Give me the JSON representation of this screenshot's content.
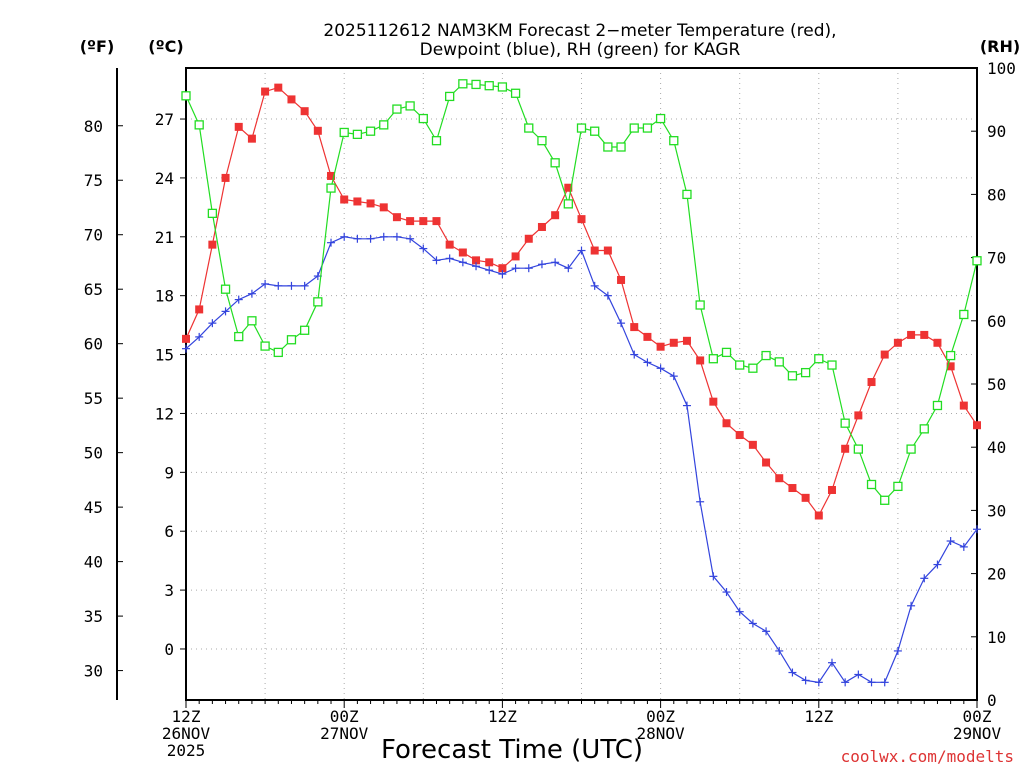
{
  "chart_data": {
    "type": "line",
    "title_line1": "2025112612 NAM3KM Forecast 2−meter Temperature (red),",
    "title_line2": "Dewpoint (blue), RH (green) for KAGR",
    "xlabel": "Forecast Time (UTC)",
    "watermark": "coolwx.com/modelts",
    "unit_label_f": "(ºF)",
    "unit_label_c": "(ºC)",
    "unit_label_rh": "(RH)",
    "x_range_hours": [
      0,
      60
    ],
    "x_ticks": [
      {
        "hour": 0,
        "lines": [
          "12Z",
          "26NOV",
          "2025"
        ]
      },
      {
        "hour": 12,
        "lines": [
          "00Z",
          "27NOV"
        ]
      },
      {
        "hour": 24,
        "lines": [
          "12Z",
          ""
        ]
      },
      {
        "hour": 36,
        "lines": [
          "00Z",
          "28NOV"
        ]
      },
      {
        "hour": 48,
        "lines": [
          "12Z",
          ""
        ]
      },
      {
        "hour": 60,
        "lines": [
          "00Z",
          "29NOV"
        ]
      }
    ],
    "ylim_c": [
      -2.6,
      29.6
    ],
    "ylim_f": [
      27.3,
      85.3
    ],
    "ylim_rh": [
      0,
      100
    ],
    "yticks_c": [
      "27",
      "24",
      "21",
      "18",
      "15",
      "12",
      "9",
      "6",
      "3",
      "0"
    ],
    "yticks_f": [
      "80",
      "75",
      "70",
      "65",
      "60",
      "55",
      "50",
      "45",
      "40",
      "35",
      "30"
    ],
    "yticks_rh": [
      "100",
      "90",
      "80",
      "70",
      "60",
      "50",
      "40",
      "30",
      "20",
      "10",
      "0"
    ],
    "series": [
      {
        "name": "Temperature (°C)",
        "color": "#ee3333",
        "marker": "filled-square",
        "values": [
          [
            0,
            15.8
          ],
          [
            1,
            17.3
          ],
          [
            2,
            20.6
          ],
          [
            3,
            24.0
          ],
          [
            4,
            26.6
          ],
          [
            5,
            26.0
          ],
          [
            6,
            28.4
          ],
          [
            7,
            28.6
          ],
          [
            8,
            28.0
          ],
          [
            9,
            27.4
          ],
          [
            10,
            26.4
          ],
          [
            11,
            24.1
          ],
          [
            12,
            22.9
          ],
          [
            13,
            22.8
          ],
          [
            14,
            22.7
          ],
          [
            15,
            22.5
          ],
          [
            16,
            22.0
          ],
          [
            17,
            21.8
          ],
          [
            18,
            21.8
          ],
          [
            19,
            21.8
          ],
          [
            20,
            20.6
          ],
          [
            21,
            20.2
          ],
          [
            22,
            19.8
          ],
          [
            23,
            19.7
          ],
          [
            24,
            19.4
          ],
          [
            25,
            20.0
          ],
          [
            26,
            20.9
          ],
          [
            27,
            21.5
          ],
          [
            28,
            22.1
          ],
          [
            29,
            23.5
          ],
          [
            30,
            21.9
          ],
          [
            31,
            20.3
          ],
          [
            32,
            20.3
          ],
          [
            33,
            18.8
          ],
          [
            34,
            16.4
          ],
          [
            35,
            15.9
          ],
          [
            36,
            15.4
          ],
          [
            37,
            15.6
          ],
          [
            38,
            15.7
          ],
          [
            39,
            14.7
          ],
          [
            40,
            12.6
          ],
          [
            41,
            11.5
          ],
          [
            42,
            10.9
          ],
          [
            43,
            10.4
          ],
          [
            44,
            9.5
          ],
          [
            45,
            8.7
          ],
          [
            46,
            8.2
          ],
          [
            47,
            7.7
          ],
          [
            48,
            6.8
          ],
          [
            49,
            8.1
          ],
          [
            50,
            10.2
          ],
          [
            51,
            11.9
          ],
          [
            52,
            13.6
          ],
          [
            53,
            15.0
          ],
          [
            54,
            15.6
          ],
          [
            55,
            16.0
          ],
          [
            56,
            16.0
          ],
          [
            57,
            15.6
          ],
          [
            58,
            14.4
          ],
          [
            59,
            12.4
          ],
          [
            60,
            11.4
          ]
        ]
      },
      {
        "name": "Dewpoint (°C)",
        "color": "#3344dd",
        "marker": "plus",
        "values": [
          [
            0,
            15.3
          ],
          [
            1,
            15.9
          ],
          [
            2,
            16.6
          ],
          [
            3,
            17.2
          ],
          [
            4,
            17.8
          ],
          [
            5,
            18.1
          ],
          [
            6,
            18.6
          ],
          [
            7,
            18.5
          ],
          [
            8,
            18.5
          ],
          [
            9,
            18.5
          ],
          [
            10,
            19.0
          ],
          [
            11,
            20.7
          ],
          [
            12,
            21.0
          ],
          [
            13,
            20.9
          ],
          [
            14,
            20.9
          ],
          [
            15,
            21.0
          ],
          [
            16,
            21.0
          ],
          [
            17,
            20.9
          ],
          [
            18,
            20.4
          ],
          [
            19,
            19.8
          ],
          [
            20,
            19.9
          ],
          [
            21,
            19.7
          ],
          [
            22,
            19.5
          ],
          [
            23,
            19.3
          ],
          [
            24,
            19.1
          ],
          [
            25,
            19.4
          ],
          [
            26,
            19.4
          ],
          [
            27,
            19.6
          ],
          [
            28,
            19.7
          ],
          [
            29,
            19.4
          ],
          [
            30,
            20.3
          ],
          [
            31,
            18.5
          ],
          [
            32,
            18.0
          ],
          [
            33,
            16.6
          ],
          [
            34,
            15.0
          ],
          [
            35,
            14.6
          ],
          [
            36,
            14.3
          ],
          [
            37,
            13.9
          ],
          [
            38,
            12.4
          ],
          [
            39,
            7.5
          ],
          [
            40,
            3.7
          ],
          [
            41,
            2.9
          ],
          [
            42,
            1.9
          ],
          [
            43,
            1.3
          ],
          [
            44,
            0.9
          ],
          [
            45,
            -0.1
          ],
          [
            46,
            -1.2
          ],
          [
            47,
            -1.6
          ],
          [
            48,
            -1.7
          ],
          [
            49,
            -0.7
          ],
          [
            50,
            -1.7
          ],
          [
            51,
            -1.3
          ],
          [
            52,
            -1.7
          ],
          [
            53,
            -1.7
          ],
          [
            54,
            -0.1
          ],
          [
            55,
            2.2
          ],
          [
            56,
            3.6
          ],
          [
            57,
            4.3
          ],
          [
            58,
            5.5
          ],
          [
            59,
            5.2
          ],
          [
            60,
            6.1
          ]
        ]
      },
      {
        "name": "RH (%)",
        "color": "#22dd22",
        "marker": "open-square",
        "values": [
          [
            0,
            95.6
          ],
          [
            1,
            91.0
          ],
          [
            2,
            77.0
          ],
          [
            3,
            65.0
          ],
          [
            4,
            57.5
          ],
          [
            5,
            60.0
          ],
          [
            6,
            56.0
          ],
          [
            7,
            55.0
          ],
          [
            8,
            57.0
          ],
          [
            9,
            58.5
          ],
          [
            10,
            63.0
          ],
          [
            11,
            81.0
          ],
          [
            12,
            89.8
          ],
          [
            13,
            89.5
          ],
          [
            14,
            90.0
          ],
          [
            15,
            91.0
          ],
          [
            16,
            93.5
          ],
          [
            17,
            94.0
          ],
          [
            18,
            92.0
          ],
          [
            19,
            88.5
          ],
          [
            20,
            95.5
          ],
          [
            21,
            97.5
          ],
          [
            22,
            97.4
          ],
          [
            23,
            97.2
          ],
          [
            24,
            97.0
          ],
          [
            25,
            96.0
          ],
          [
            26,
            90.5
          ],
          [
            27,
            88.5
          ],
          [
            28,
            85.0
          ],
          [
            29,
            78.5
          ],
          [
            30,
            90.5
          ],
          [
            31,
            90.0
          ],
          [
            32,
            87.5
          ],
          [
            33,
            87.5
          ],
          [
            34,
            90.5
          ],
          [
            35,
            90.5
          ],
          [
            36,
            92.0
          ],
          [
            37,
            88.5
          ],
          [
            38,
            80.0
          ],
          [
            39,
            62.5
          ],
          [
            40,
            54.0
          ],
          [
            41,
            55.0
          ],
          [
            42,
            53.0
          ],
          [
            43,
            52.5
          ],
          [
            44,
            54.5
          ],
          [
            45,
            53.5
          ],
          [
            46,
            51.3
          ],
          [
            47,
            51.8
          ],
          [
            48,
            54.0
          ],
          [
            49,
            53.0
          ],
          [
            50,
            43.8
          ],
          [
            51,
            39.7
          ],
          [
            52,
            34.1
          ],
          [
            53,
            31.6
          ],
          [
            54,
            33.8
          ],
          [
            55,
            39.7
          ],
          [
            56,
            42.9
          ],
          [
            57,
            46.6
          ],
          [
            58,
            54.5
          ],
          [
            59,
            61.0
          ],
          [
            60,
            69.5
          ]
        ]
      }
    ]
  }
}
